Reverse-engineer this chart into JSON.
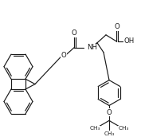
{
  "bg_color": "#ffffff",
  "line_color": "#1a1a1a",
  "lw": 0.85,
  "fig_width": 1.77,
  "fig_height": 1.72,
  "dpi": 100,
  "xlim": [
    0,
    177
  ],
  "ylim": [
    0,
    172
  ]
}
